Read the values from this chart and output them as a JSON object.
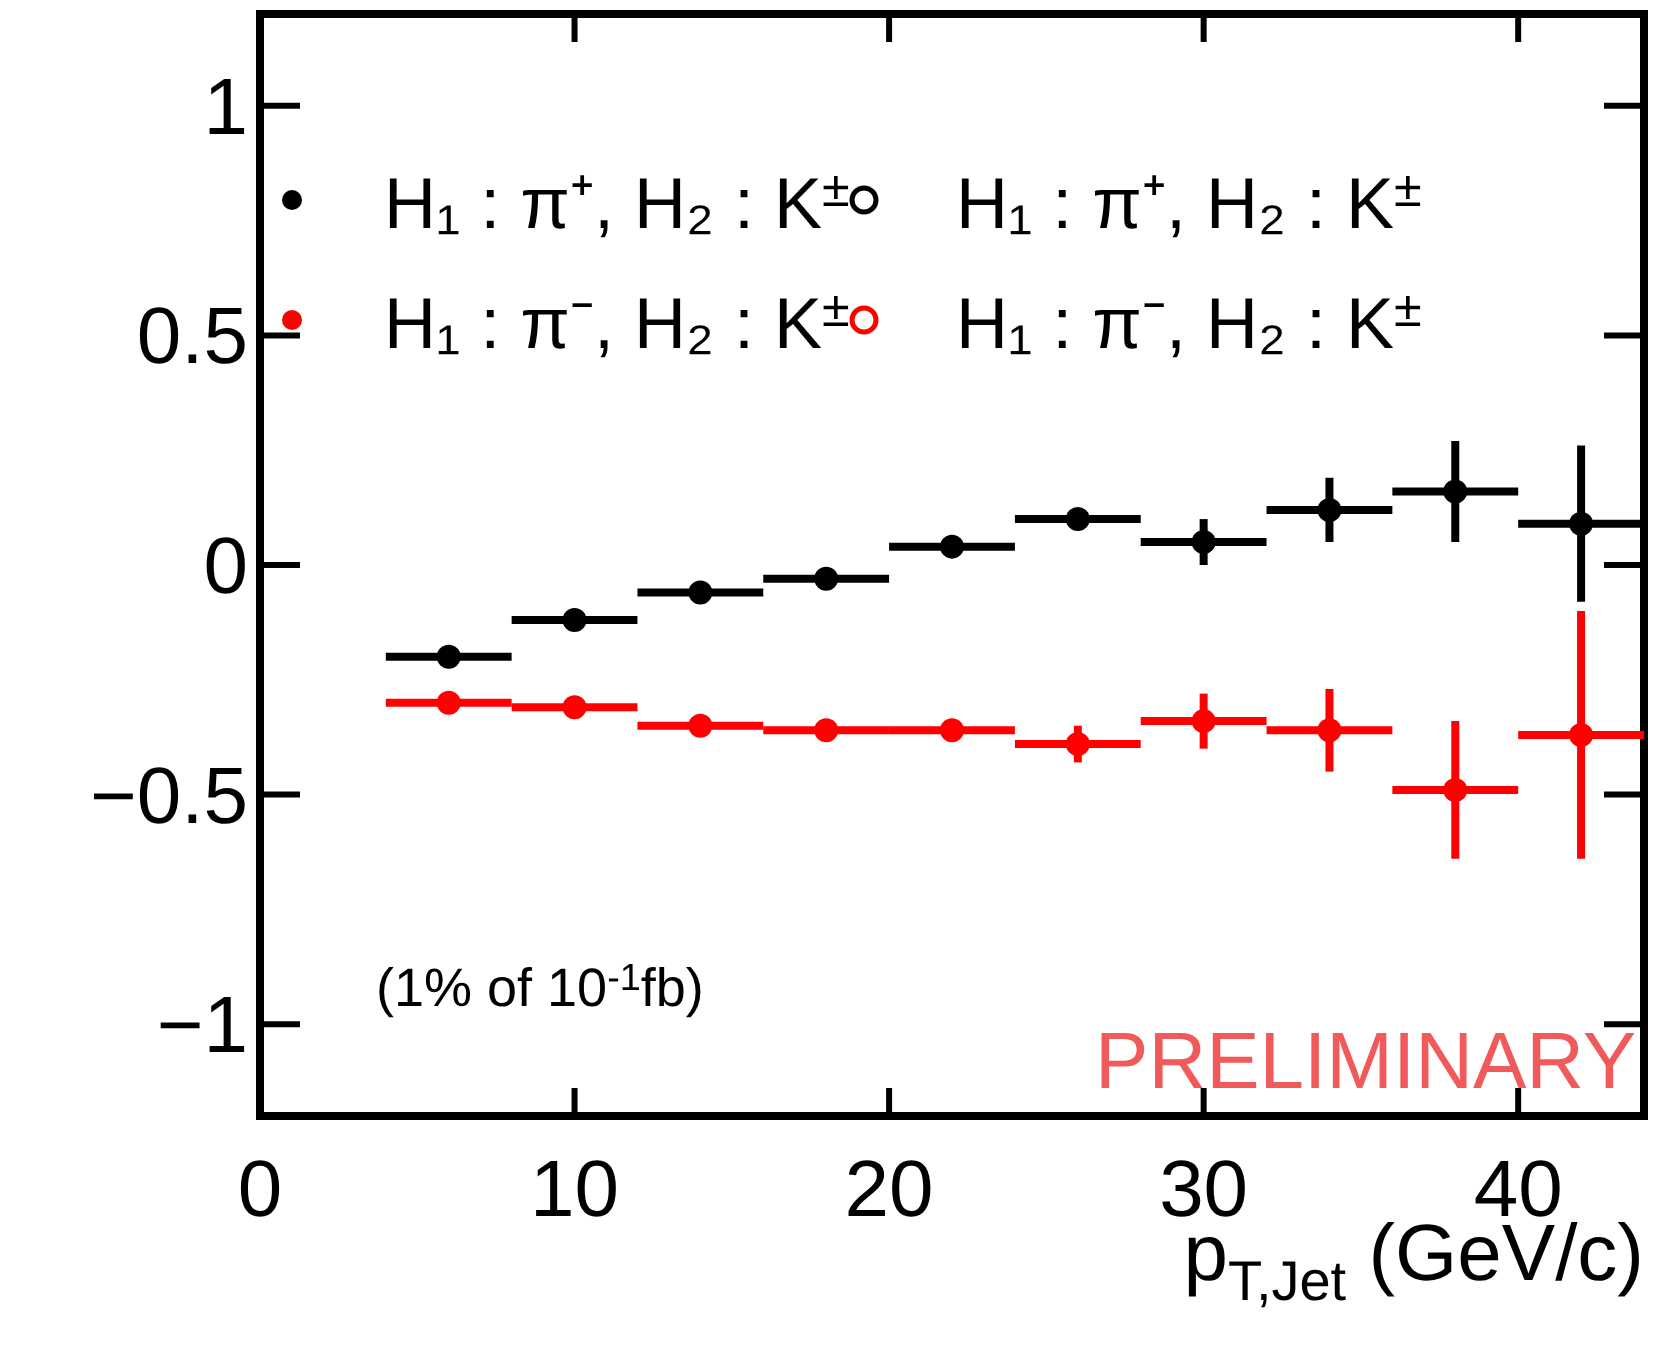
{
  "chart_data": {
    "type": "scatter",
    "xlabel": "p$_{T,Jet}$ (GeV/c)",
    "x": [
      6,
      10,
      14,
      18,
      22,
      26,
      30,
      34,
      38,
      42
    ],
    "xlim": [
      0,
      44
    ],
    "xticks": [
      0,
      10,
      20,
      30,
      40
    ],
    "ylim": [
      -1.2,
      1.2
    ],
    "yticks": [
      {
        "value": -1,
        "label": "−1"
      },
      {
        "value": -0.5,
        "label": "−0.5"
      },
      0,
      0.5,
      1
    ],
    "marker": "circle",
    "legend": "top",
    "grid": false,
    "series": [
      {
        "name": "H₁ : π⁺, H₂ : K$^{±}$",
        "color": "#000000",
        "values": [
          -0.2,
          -0.12,
          -0.06,
          -0.03,
          0.04,
          0.1,
          0.05,
          0.12,
          0.16,
          0.09
        ],
        "errors": [
          null,
          null,
          null,
          null,
          null,
          0.02,
          0.05,
          0.07,
          0.11,
          0.17
        ],
        "xerrors": [
          2,
          2,
          2,
          2,
          2,
          2,
          2,
          2,
          2,
          2
        ]
      },
      {
        "name": "H₁ : π⁻, H₂ : K$^{±}$",
        "color": "#ff0000",
        "values": [
          -0.3,
          -0.31,
          -0.35,
          -0.36,
          -0.36,
          -0.39,
          -0.34,
          -0.36,
          -0.49,
          -0.37
        ],
        "errors": [
          null,
          null,
          null,
          null,
          null,
          0.04,
          0.06,
          0.09,
          0.15,
          0.27
        ],
        "xerrors": [
          2,
          2,
          2,
          2,
          2,
          2,
          2,
          2,
          2,
          2
        ]
      },
      {
        "name": "H₁ : π⁺, H₂ : K$^{±}$",
        "color": "#000000",
        "values": [
          null,
          null,
          null,
          null,
          null,
          null,
          null,
          null,
          null,
          null
        ]
      },
      {
        "name": "H₁ : π⁻, H₂ : K$^{±}$",
        "color": "#ff0000",
        "values": [
          null,
          null,
          null,
          null,
          null,
          null,
          null,
          null,
          null,
          null
        ]
      }
    ],
    "annotations": [
      "(1% of 10$^{-1}$fb)",
      "PRELIMINARY"
    ]
  }
}
